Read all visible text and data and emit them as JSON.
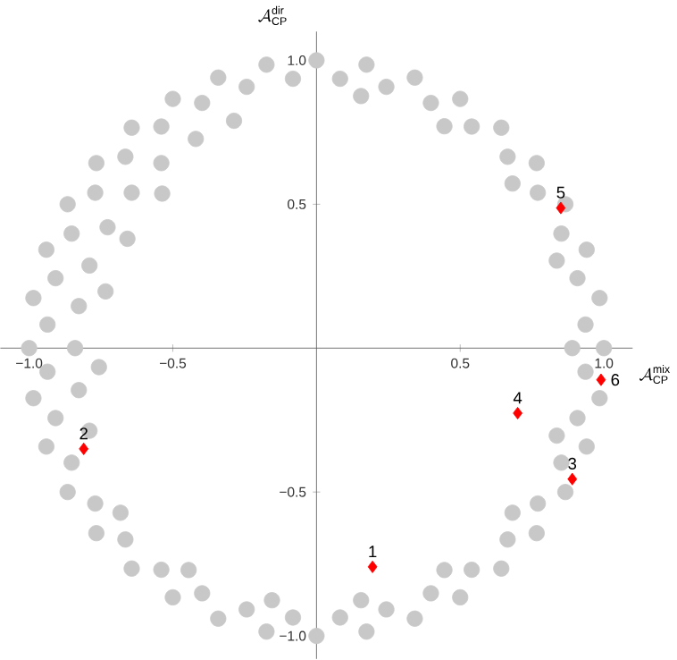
{
  "chart_data": {
    "type": "scatter",
    "xlabel": "\\mathcal{A}_{\\mathrm{CP}}^{\\mathrm{mix}}",
    "ylabel": "\\mathcal{A}_{\\mathrm{CP}}^{\\mathrm{dir}}",
    "xlim": [
      -1.1,
      1.1
    ],
    "ylim": [
      -1.08,
      1.1
    ],
    "xticks": [
      {
        "value": -1,
        "label": "−1.0"
      },
      {
        "value": -0.5,
        "label": "−0.5"
      },
      {
        "value": 0.5,
        "label": "0.5"
      },
      {
        "value": 1,
        "label": "1.0"
      }
    ],
    "yticks": [
      {
        "value": -1,
        "label": "−1.0"
      },
      {
        "value": -0.5,
        "label": "−0.5"
      },
      {
        "value": 0.5,
        "label": "0.5"
      },
      {
        "value": 1,
        "label": "1.0"
      }
    ],
    "series": [
      {
        "color": "#c8c8c8",
        "marker": "circle",
        "x": [
          1,
          0.985,
          0.94,
          0.866,
          0.766,
          0.643,
          0.5,
          0.342,
          0.174,
          0,
          -0.174,
          -0.342,
          -0.5,
          -0.643,
          -0.766,
          -0.866,
          -0.94,
          -0.985,
          -1,
          -0.985,
          -0.94,
          -0.866,
          -0.766,
          -0.643,
          -0.5,
          -0.342,
          -0.174,
          0,
          0.174,
          0.342,
          0.5,
          0.643,
          0.766,
          0.866,
          0.94,
          0.985,
          0.936,
          0.908,
          0.852,
          0.77,
          0.665,
          0.54,
          0.398,
          0.243,
          0.082,
          -0.082,
          -0.243,
          -0.398,
          -0.54,
          -0.665,
          -0.77,
          -0.852,
          -0.908,
          -0.936,
          -0.936,
          -0.908,
          -0.852,
          -0.77,
          -0.665,
          -0.54,
          -0.398,
          -0.243,
          -0.082,
          0.082,
          0.243,
          0.398,
          0.54,
          0.665,
          0.77,
          0.852,
          0.908,
          0.936,
          -0.287,
          -0.42,
          -0.54,
          -0.643,
          -0.727,
          -0.79,
          -0.827,
          -0.84,
          -0.827,
          -0.79,
          -0.537,
          -0.658,
          -0.734,
          -0.757,
          0.89,
          0.836,
          0.682,
          0.445,
          0.155,
          -0.682,
          -0.445,
          -0.155,
          0.155,
          0.445,
          0.682,
          0.836
        ],
        "values": [
          0,
          0.174,
          0.342,
          0.5,
          0.643,
          0.766,
          0.866,
          0.94,
          0.985,
          1,
          0.985,
          0.94,
          0.866,
          0.766,
          0.643,
          0.5,
          0.342,
          0.174,
          0,
          -0.174,
          -0.342,
          -0.5,
          -0.643,
          -0.766,
          -0.866,
          -0.94,
          -0.985,
          -1,
          -0.985,
          -0.94,
          -0.866,
          -0.766,
          -0.643,
          -0.5,
          -0.342,
          -0.174,
          0.082,
          0.243,
          0.398,
          0.54,
          0.665,
          0.77,
          0.852,
          0.908,
          0.936,
          0.936,
          0.908,
          0.852,
          0.77,
          0.665,
          0.54,
          0.398,
          0.243,
          0.082,
          -0.082,
          -0.243,
          -0.398,
          -0.54,
          -0.665,
          -0.77,
          -0.852,
          -0.908,
          -0.936,
          -0.936,
          -0.908,
          -0.852,
          -0.77,
          -0.665,
          -0.54,
          -0.398,
          -0.243,
          -0.082,
          0.79,
          0.727,
          0.643,
          0.54,
          0.42,
          0.287,
          0.146,
          0,
          -0.146,
          -0.287,
          0.537,
          0.38,
          0.197,
          -0.066,
          0,
          0.304,
          0.572,
          0.771,
          0.876,
          -0.572,
          -0.771,
          -0.876,
          -0.876,
          -0.771,
          -0.572,
          -0.304
        ]
      },
      {
        "color": "#ff0000",
        "marker": "diamond",
        "x": [
          0.195,
          -0.81,
          0.89,
          0.7,
          0.85,
          0.99
        ],
        "values": [
          -0.76,
          -0.35,
          -0.455,
          -0.226,
          0.487,
          -0.11
        ]
      }
    ],
    "annotations": [
      {
        "text": "1",
        "x": 0.195,
        "y": -0.76
      },
      {
        "text": "2",
        "x": -0.81,
        "y": -0.35
      },
      {
        "text": "3",
        "x": 0.89,
        "y": -0.455
      },
      {
        "text": "4",
        "x": 0.7,
        "y": -0.226
      },
      {
        "text": "5",
        "x": 0.85,
        "y": 0.487
      },
      {
        "text": "6",
        "x": 0.99,
        "y": -0.11
      }
    ]
  }
}
